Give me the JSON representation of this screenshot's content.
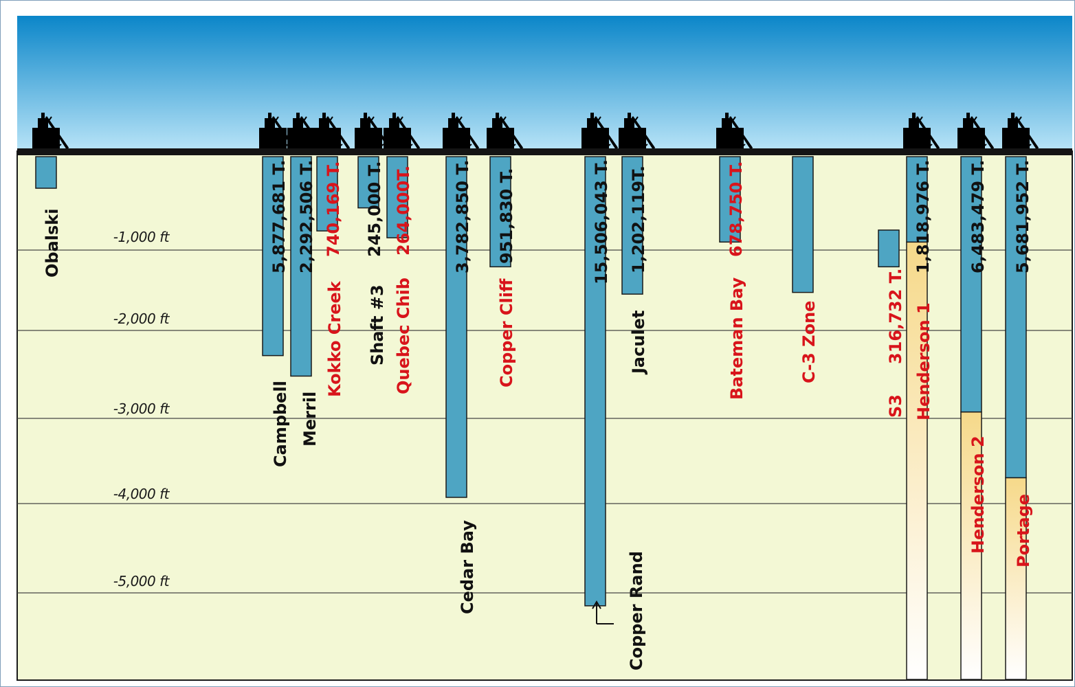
{
  "depth_labels": [
    "-1,000 ft",
    "-2,000 ft",
    "-3,000 ft",
    "-4,000 ft",
    "-5,000 ft"
  ],
  "colors": {
    "sky_top": "#0b86c9",
    "sky_bottom": "#b9e4f7",
    "ground": "#f3f8d5",
    "shaft": "#4ea5c3",
    "projected_top": "#f6d98a",
    "projected_bottom": "#ffffff",
    "label_existing": "#111111",
    "label_projected": "#d8141b"
  },
  "mines": [
    {
      "id": "obalski",
      "name": "Obalski",
      "tonnage": "",
      "depth_ft": 370,
      "name_color": "black",
      "ton_color": "black"
    },
    {
      "id": "campbell",
      "name": "Campbell",
      "tonnage": "5,877,681 T.",
      "depth_ft": 2330,
      "name_color": "black",
      "ton_color": "black"
    },
    {
      "id": "merril",
      "name": "Merril",
      "tonnage": "2,292,506 T.",
      "depth_ft": 2570,
      "name_color": "black",
      "ton_color": "black"
    },
    {
      "id": "kokko-creek",
      "name": "Kokko Creek",
      "tonnage": "740,169 T.",
      "depth_ft": 870,
      "name_color": "red",
      "ton_color": "red"
    },
    {
      "id": "shaft-3",
      "name": "Shaft #3",
      "tonnage": "245,000 T.",
      "depth_ft": 600,
      "name_color": "black",
      "ton_color": "black"
    },
    {
      "id": "quebec-chib",
      "name": "Quebec Chib",
      "tonnage": "264,000T.",
      "depth_ft": 950,
      "name_color": "red",
      "ton_color": "red"
    },
    {
      "id": "cedar-bay",
      "name": "Cedar Bay",
      "tonnage": "3,782,850 T.",
      "depth_ft": 3990,
      "name_color": "black",
      "ton_color": "black"
    },
    {
      "id": "copper-cliff",
      "name": "Copper Cliff",
      "tonnage": "951,830 T.",
      "depth_ft": 1290,
      "name_color": "red",
      "ton_color": "black"
    },
    {
      "id": "copper-rand",
      "name": "Copper Rand",
      "tonnage": "15,506,043 T.",
      "depth_ft": 5260,
      "name_color": "black",
      "ton_color": "black"
    },
    {
      "id": "jaculet",
      "name": "Jaculet",
      "tonnage": "1,202,119T.",
      "depth_ft": 1610,
      "name_color": "black",
      "ton_color": "black"
    },
    {
      "id": "bateman-bay",
      "name": "Bateman Bay",
      "tonnage": "678,750 T.",
      "depth_ft": 1000,
      "name_color": "red",
      "ton_color": "red"
    },
    {
      "id": "c-3-zone",
      "name": "C-3 Zone",
      "tonnage": "",
      "depth_ft": 1590,
      "name_color": "red",
      "ton_color": "red"
    },
    {
      "id": "s3",
      "name": "S3",
      "tonnage": "316,732 T.",
      "depth_ft": 1290,
      "name_color": "red",
      "ton_color": "red"
    },
    {
      "id": "henderson-1",
      "name": "Henderson 1",
      "tonnage": "1,818,976 T.",
      "depth_ft": 6400,
      "name_color": "red",
      "ton_color": "black"
    },
    {
      "id": "henderson-2",
      "name": "Henderson 2",
      "tonnage": "6,483,479 T.",
      "depth_ft": 6400,
      "name_color": "red",
      "ton_color": "black"
    },
    {
      "id": "portage",
      "name": "Portage",
      "tonnage": "5,681,952 T.",
      "depth_ft": 6400,
      "name_color": "red",
      "ton_color": "black"
    }
  ]
}
